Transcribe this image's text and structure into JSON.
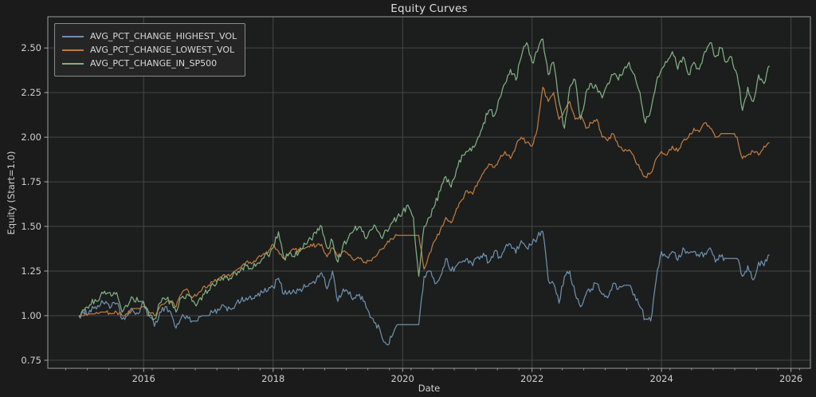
{
  "theme": {
    "figure_bg": "#1b1b1b",
    "axes_bg": "#1c1d1d",
    "grid_color": "#464646",
    "spine_color": "#9b9b9b",
    "tick_color": "#aaaaaa",
    "text_color": "#cfcfcf",
    "title_color": "#dedede"
  },
  "chart_data": {
    "type": "line",
    "title": "Equity Curves",
    "xlabel": "Date",
    "ylabel": "Equity (Start=1.0)",
    "grid": true,
    "legend_position": "upper-left",
    "xlim": [
      2014.52,
      2026.3
    ],
    "ylim": [
      0.705,
      2.675
    ],
    "xticks": [
      2016,
      2018,
      2020,
      2022,
      2024,
      2026
    ],
    "xtick_labels": [
      "2016",
      "2018",
      "2020",
      "2022",
      "2024",
      "2026"
    ],
    "yticks": [
      0.75,
      1.0,
      1.25,
      1.5,
      1.75,
      2.0,
      2.25,
      2.5
    ],
    "ytick_labels": [
      "0.75",
      "1.00",
      "1.25",
      "1.50",
      "1.75",
      "2.00",
      "2.25",
      "2.50"
    ],
    "minor_xtick_step": 0.3333,
    "x": [
      2015.0,
      2015.083,
      2015.167,
      2015.25,
      2015.333,
      2015.417,
      2015.5,
      2015.583,
      2015.667,
      2015.75,
      2015.833,
      2015.917,
      2016.0,
      2016.083,
      2016.167,
      2016.25,
      2016.333,
      2016.417,
      2016.5,
      2016.583,
      2016.667,
      2016.75,
      2016.833,
      2016.917,
      2017.0,
      2017.083,
      2017.167,
      2017.25,
      2017.333,
      2017.417,
      2017.5,
      2017.583,
      2017.667,
      2017.75,
      2017.833,
      2017.917,
      2018.0,
      2018.083,
      2018.167,
      2018.25,
      2018.333,
      2018.417,
      2018.5,
      2018.583,
      2018.667,
      2018.75,
      2018.833,
      2018.917,
      2019.0,
      2019.083,
      2019.167,
      2019.25,
      2019.333,
      2019.417,
      2019.5,
      2019.583,
      2019.667,
      2019.75,
      2019.833,
      2019.917,
      2020.0,
      2020.083,
      2020.167,
      2020.25,
      2020.333,
      2020.417,
      2020.5,
      2020.583,
      2020.667,
      2020.75,
      2020.833,
      2020.917,
      2021.0,
      2021.083,
      2021.167,
      2021.25,
      2021.333,
      2021.417,
      2021.5,
      2021.583,
      2021.667,
      2021.75,
      2021.833,
      2021.917,
      2022.0,
      2022.083,
      2022.167,
      2022.25,
      2022.333,
      2022.417,
      2022.5,
      2022.583,
      2022.667,
      2022.75,
      2022.833,
      2022.917,
      2023.0,
      2023.083,
      2023.167,
      2023.25,
      2023.333,
      2023.417,
      2023.5,
      2023.583,
      2023.667,
      2023.75,
      2023.833,
      2023.917,
      2024.0,
      2024.083,
      2024.167,
      2024.25,
      2024.333,
      2024.417,
      2024.5,
      2024.583,
      2024.667,
      2024.75,
      2024.833,
      2024.917,
      2025.0,
      2025.083,
      2025.167,
      2025.25,
      2025.333,
      2025.417,
      2025.5,
      2025.583,
      2025.667
    ],
    "series": [
      {
        "name": "AVG_PCT_CHANGE_HIGHEST_VOL",
        "color": "#6d90ad",
        "jitter": 0.02,
        "values": [
          1.0,
          1.01,
          1.03,
          1.05,
          1.06,
          1.08,
          1.05,
          1.07,
          0.98,
          1.0,
          1.03,
          1.01,
          1.07,
          1.0,
          0.94,
          1.02,
          1.05,
          1.02,
          0.93,
          0.99,
          1.0,
          0.97,
          0.97,
          1.0,
          1.0,
          1.02,
          1.03,
          1.05,
          1.04,
          1.06,
          1.08,
          1.1,
          1.09,
          1.11,
          1.13,
          1.14,
          1.16,
          1.21,
          1.12,
          1.14,
          1.13,
          1.15,
          1.16,
          1.18,
          1.2,
          1.24,
          1.15,
          1.25,
          1.08,
          1.15,
          1.12,
          1.1,
          1.12,
          1.08,
          0.99,
          0.96,
          0.9,
          0.84,
          0.88,
          0.95,
          0.95,
          0.95,
          0.95,
          0.95,
          1.22,
          1.25,
          1.18,
          1.22,
          1.32,
          1.25,
          1.28,
          1.3,
          1.32,
          1.28,
          1.33,
          1.35,
          1.3,
          1.36,
          1.33,
          1.38,
          1.4,
          1.35,
          1.42,
          1.38,
          1.4,
          1.44,
          1.47,
          1.2,
          1.18,
          1.07,
          1.22,
          1.25,
          1.12,
          1.05,
          1.12,
          1.15,
          1.18,
          1.12,
          1.1,
          1.18,
          1.15,
          1.17,
          1.17,
          1.12,
          1.05,
          0.98,
          0.97,
          1.2,
          1.36,
          1.33,
          1.36,
          1.31,
          1.38,
          1.35,
          1.36,
          1.33,
          1.35,
          1.38,
          1.3,
          1.33,
          1.32,
          1.32,
          1.32,
          1.22,
          1.28,
          1.2,
          1.3,
          1.28,
          1.34
        ]
      },
      {
        "name": "AVG_PCT_CHANGE_LOWEST_VOL",
        "color": "#bd7a3f",
        "jitter": 0.012,
        "values": [
          1.0,
          1.0,
          1.01,
          1.01,
          1.02,
          1.02,
          1.01,
          1.02,
          1.0,
          1.01,
          1.04,
          1.04,
          1.05,
          1.02,
          1.0,
          1.05,
          1.07,
          1.08,
          1.05,
          1.12,
          1.15,
          1.1,
          1.12,
          1.16,
          1.17,
          1.19,
          1.21,
          1.23,
          1.22,
          1.25,
          1.27,
          1.3,
          1.29,
          1.32,
          1.34,
          1.35,
          1.4,
          1.36,
          1.32,
          1.35,
          1.37,
          1.36,
          1.38,
          1.4,
          1.39,
          1.4,
          1.33,
          1.38,
          1.33,
          1.36,
          1.34,
          1.31,
          1.32,
          1.3,
          1.31,
          1.33,
          1.37,
          1.4,
          1.43,
          1.45,
          1.45,
          1.45,
          1.45,
          1.45,
          1.26,
          1.35,
          1.42,
          1.48,
          1.55,
          1.52,
          1.6,
          1.65,
          1.7,
          1.68,
          1.75,
          1.8,
          1.85,
          1.83,
          1.88,
          1.92,
          1.88,
          1.95,
          2.0,
          1.97,
          1.95,
          2.05,
          2.28,
          2.2,
          2.25,
          2.1,
          2.15,
          2.2,
          2.1,
          2.12,
          2.05,
          2.08,
          2.1,
          2.0,
          1.98,
          2.02,
          1.95,
          1.92,
          1.93,
          1.88,
          1.82,
          1.78,
          1.8,
          1.88,
          1.92,
          1.9,
          1.95,
          1.92,
          1.98,
          2.0,
          2.05,
          2.03,
          2.08,
          2.05,
          2.0,
          2.02,
          2.02,
          2.02,
          2.0,
          1.88,
          1.9,
          1.92,
          1.9,
          1.95,
          1.97
        ]
      },
      {
        "name": "AVG_PCT_CHANGE_IN_SP500",
        "color": "#7fb083",
        "jitter": 0.02,
        "values": [
          1.0,
          1.03,
          1.06,
          1.09,
          1.11,
          1.12,
          1.11,
          1.13,
          1.02,
          1.05,
          1.1,
          1.08,
          1.08,
          1.0,
          0.98,
          1.07,
          1.09,
          1.08,
          1.02,
          1.1,
          1.12,
          1.08,
          1.07,
          1.12,
          1.14,
          1.17,
          1.2,
          1.22,
          1.21,
          1.24,
          1.26,
          1.28,
          1.26,
          1.29,
          1.32,
          1.34,
          1.38,
          1.47,
          1.32,
          1.35,
          1.33,
          1.38,
          1.4,
          1.43,
          1.46,
          1.5,
          1.38,
          1.42,
          1.3,
          1.4,
          1.44,
          1.48,
          1.5,
          1.44,
          1.48,
          1.5,
          1.44,
          1.48,
          1.52,
          1.55,
          1.58,
          1.62,
          1.55,
          1.22,
          1.5,
          1.55,
          1.62,
          1.7,
          1.78,
          1.72,
          1.82,
          1.9,
          1.92,
          1.95,
          2.0,
          2.08,
          2.15,
          2.12,
          2.22,
          2.3,
          2.38,
          2.32,
          2.45,
          2.53,
          2.42,
          2.48,
          2.55,
          2.35,
          2.42,
          2.2,
          2.05,
          2.28,
          2.32,
          2.1,
          2.25,
          2.3,
          2.28,
          2.22,
          2.3,
          2.35,
          2.32,
          2.38,
          2.42,
          2.35,
          2.25,
          2.08,
          2.15,
          2.3,
          2.38,
          2.42,
          2.48,
          2.38,
          2.45,
          2.35,
          2.42,
          2.38,
          2.48,
          2.53,
          2.45,
          2.5,
          2.42,
          2.45,
          2.35,
          2.15,
          2.28,
          2.2,
          2.35,
          2.3,
          2.4
        ]
      }
    ]
  }
}
